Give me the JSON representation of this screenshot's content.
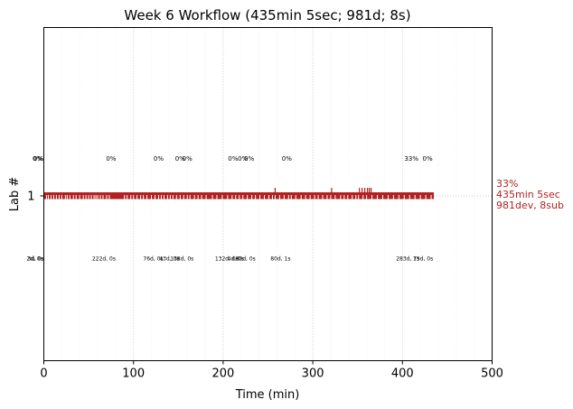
{
  "chart_data": {
    "type": "timeline",
    "title": "Week 6 Workflow (435min 5sec; 981d; 8s)",
    "xlabel": "Time (min)",
    "ylabel": "Lab #",
    "xlim": [
      0,
      500
    ],
    "x_ticks": [
      0,
      100,
      200,
      300,
      400,
      500
    ],
    "y_ticks": [
      "1"
    ],
    "grid": "vertical dotted",
    "colors": {
      "series": "#b22222",
      "grid": "#bbbbbb"
    },
    "series": [
      {
        "lab": "1",
        "total_time": 435,
        "summary_lines": [
          "33%",
          "435min 5sec",
          "981dev, 8sub"
        ]
      }
    ],
    "gaps": [
      3,
      5,
      8,
      11,
      14,
      17,
      20,
      24,
      26,
      29,
      33,
      36,
      40,
      44,
      47,
      50,
      53,
      56,
      58,
      60,
      63,
      66,
      70,
      73,
      90,
      93,
      97,
      100,
      104,
      108,
      111,
      115,
      120,
      124,
      128,
      131,
      134,
      138,
      141,
      144,
      148,
      152,
      156,
      160,
      163,
      168,
      172,
      176,
      181,
      188,
      193,
      199,
      205,
      210,
      214,
      218,
      222,
      227,
      232,
      236,
      241,
      246,
      251,
      255,
      258,
      263,
      268,
      273,
      276,
      281,
      287,
      292,
      297,
      302,
      306,
      311,
      316,
      320,
      325,
      331,
      335,
      339,
      344,
      348,
      351,
      356,
      360,
      366,
      372,
      378,
      384,
      390,
      396,
      402,
      408,
      414,
      420,
      426,
      432
    ],
    "submissions": [
      258,
      321,
      352,
      355,
      358,
      361,
      363,
      365
    ],
    "percent_labels": [
      {
        "x": -7,
        "text": "0%"
      },
      {
        "x": -6,
        "text": "0%"
      },
      {
        "x": 75,
        "text": "0%"
      },
      {
        "x": 128,
        "text": "0%"
      },
      {
        "x": 152,
        "text": "0%"
      },
      {
        "x": 160,
        "text": "0%"
      },
      {
        "x": 211,
        "text": "0%"
      },
      {
        "x": 222,
        "text": "0%"
      },
      {
        "x": 229,
        "text": "0%"
      },
      {
        "x": 271,
        "text": "0%"
      },
      {
        "x": 410,
        "text": "33%"
      },
      {
        "x": 428,
        "text": "0%"
      }
    ],
    "gap_labels": [
      {
        "x": -10,
        "text": "2d, 0s"
      },
      {
        "x": -9,
        "text": "3d, 0s"
      },
      {
        "x": 67,
        "text": "222d, 0s"
      },
      {
        "x": 122,
        "text": "76d, 0s"
      },
      {
        "x": 140,
        "text": "43d, 0s"
      },
      {
        "x": 154,
        "text": "138d, 0s"
      },
      {
        "x": 204,
        "text": "132d, 0s"
      },
      {
        "x": 214,
        "text": "4d, 0s"
      },
      {
        "x": 225,
        "text": "80d, 0s"
      },
      {
        "x": 264,
        "text": "80d, 1s"
      },
      {
        "x": 406,
        "text": "283d, 7s"
      },
      {
        "x": 423,
        "text": "15d, 0s"
      }
    ]
  }
}
